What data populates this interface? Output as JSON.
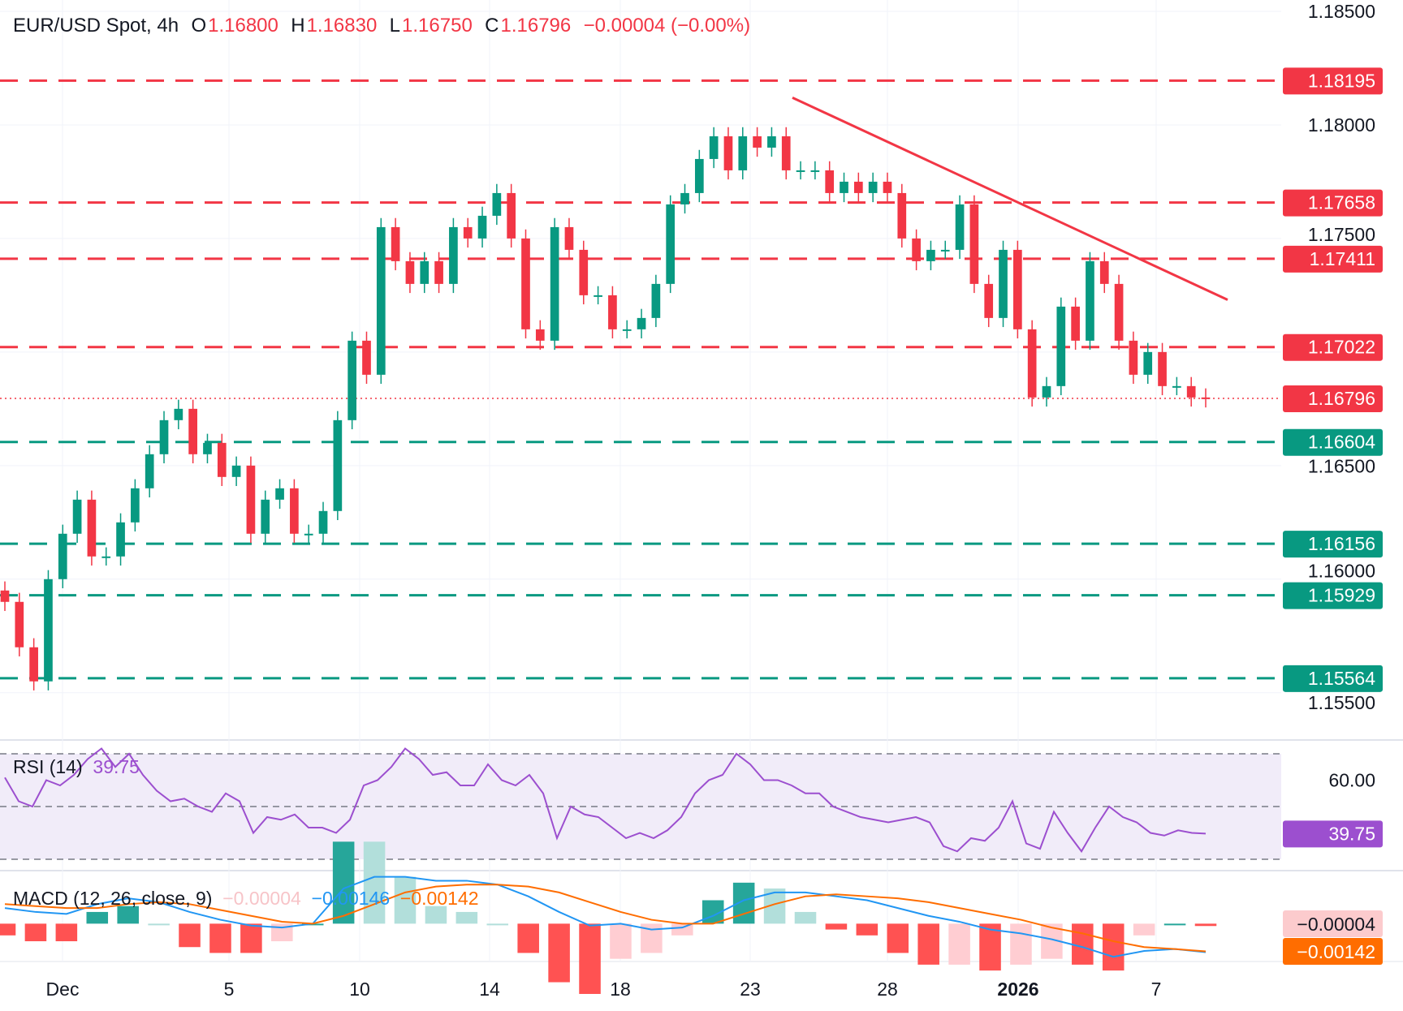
{
  "header": {
    "symbol": "EUR/USD Spot, 4h",
    "open_label": "O",
    "open": "1.16800",
    "high_label": "H",
    "high": "1.16830",
    "low_label": "L",
    "low": "1.16750",
    "close_label": "C",
    "close": "1.16796",
    "change": "−0.00004 (−0.00%)"
  },
  "colors": {
    "up": "#089981",
    "down": "#f23645",
    "rsi": "#9c4fcf",
    "macd": "#2196f3",
    "signal": "#ff6d00",
    "resistance": "#f23645",
    "support": "#089981"
  },
  "chart_data": [
    {
      "type": "candlestick",
      "title": "EUR/USD Spot, 4h",
      "ylim": [
        1.153,
        1.1855
      ],
      "price_ticks": [
        "1.18500",
        "1.18000",
        "1.17500",
        "1.16500",
        "1.16000",
        "1.15500"
      ],
      "x_ticks": [
        "Dec",
        "5",
        "10",
        "14",
        "18",
        "23",
        "28",
        "2026",
        "7"
      ],
      "closes": [
        1.159,
        1.157,
        1.1555,
        1.16,
        1.162,
        1.1635,
        1.161,
        1.161,
        1.1625,
        1.164,
        1.1655,
        1.167,
        1.1675,
        1.1655,
        1.166,
        1.1645,
        1.165,
        1.162,
        1.1635,
        1.164,
        1.162,
        1.162,
        1.163,
        1.167,
        1.1705,
        1.169,
        1.1755,
        1.174,
        1.173,
        1.174,
        1.173,
        1.1755,
        1.175,
        1.176,
        1.177,
        1.175,
        1.171,
        1.1705,
        1.1755,
        1.1745,
        1.1725,
        1.1725,
        1.171,
        1.171,
        1.1715,
        1.173,
        1.1765,
        1.177,
        1.1785,
        1.1795,
        1.178,
        1.1795,
        1.179,
        1.1795,
        1.178,
        1.178,
        1.178,
        1.177,
        1.1775,
        1.177,
        1.1775,
        1.177,
        1.175,
        1.174,
        1.1745,
        1.1745,
        1.1765,
        1.173,
        1.1715,
        1.1745,
        1.171,
        1.168,
        1.1685,
        1.172,
        1.1705,
        1.174,
        1.173,
        1.1705,
        1.169,
        1.17,
        1.1685,
        1.1685,
        1.168,
        1.16796
      ],
      "levels_resistance": [
        1.18195,
        1.17658,
        1.17411,
        1.17022
      ],
      "levels_support": [
        1.16604,
        1.16156,
        1.15929,
        1.15564
      ],
      "level_labels_resistance": [
        "1.18195",
        "1.17658",
        "1.17411",
        "1.17022"
      ],
      "level_labels_support": [
        "1.16604",
        "1.16156",
        "1.15929",
        "1.15564"
      ],
      "last_price": 1.16796,
      "last_price_label": "1.16796",
      "trendline": {
        "start_price": 1.1812,
        "end_price": 1.1723
      }
    },
    {
      "type": "line",
      "title": "RSI (14)",
      "value_label": "39.75",
      "ylim": [
        25,
        80
      ],
      "bands": [
        30,
        50,
        70
      ],
      "tick_label": "60.00",
      "values": [
        61,
        52,
        50,
        60,
        58,
        62,
        68,
        72,
        65,
        70,
        62,
        56,
        52,
        53,
        50,
        48,
        55,
        52,
        40,
        46,
        45,
        47,
        42,
        42,
        40,
        45,
        58,
        60,
        65,
        72,
        68,
        62,
        63,
        58,
        58,
        66,
        60,
        58,
        62,
        55,
        38,
        50,
        47,
        46,
        42,
        38,
        40,
        38,
        41,
        46,
        55,
        60,
        62,
        70,
        66,
        60,
        60,
        58,
        55,
        55,
        50,
        48,
        46,
        45,
        44,
        45,
        46,
        44,
        35,
        33,
        38,
        37,
        42,
        52,
        36,
        34,
        48,
        40,
        33,
        42,
        50,
        46,
        44,
        40,
        39,
        41,
        40,
        39.75
      ]
    },
    {
      "type": "line",
      "title": "MACD (12, 26, close, 9)",
      "histogram_label": "−0.00004",
      "macd_label": "−0.00146",
      "signal_label": "−0.00142",
      "ylim": [
        -0.0019,
        0.0027
      ],
      "macd": [
        0.0008,
        0.0006,
        0.0005,
        0.001,
        0.0013,
        0.0011,
        0.0006,
        0.0002,
        -0.0001,
        -0.0002,
        0.0,
        0.0018,
        0.0024,
        0.0024,
        0.0022,
        0.0022,
        0.002,
        0.0014,
        0.0006,
        -0.0001,
        0.0,
        -0.0003,
        -0.0002,
        0.0004,
        0.0012,
        0.0016,
        0.0016,
        0.0014,
        0.0012,
        0.0008,
        0.0004,
        0.0001,
        -0.0003,
        -0.0005,
        -0.0008,
        -0.0012,
        -0.0017,
        -0.0014,
        -0.0013,
        -0.00146
      ],
      "signal": [
        0.001,
        0.0009,
        0.0008,
        0.0008,
        0.001,
        0.0011,
        0.001,
        0.0007,
        0.0004,
        0.0001,
        0.0,
        0.0004,
        0.001,
        0.0016,
        0.0019,
        0.002,
        0.002,
        0.0019,
        0.0016,
        0.0011,
        0.0006,
        0.0002,
        0.0,
        0.0,
        0.0005,
        0.001,
        0.0014,
        0.0015,
        0.0014,
        0.0013,
        0.0011,
        0.0008,
        0.0005,
        0.0002,
        -0.0002,
        -0.0005,
        -0.0009,
        -0.0012,
        -0.0013,
        -0.00142
      ]
    }
  ]
}
